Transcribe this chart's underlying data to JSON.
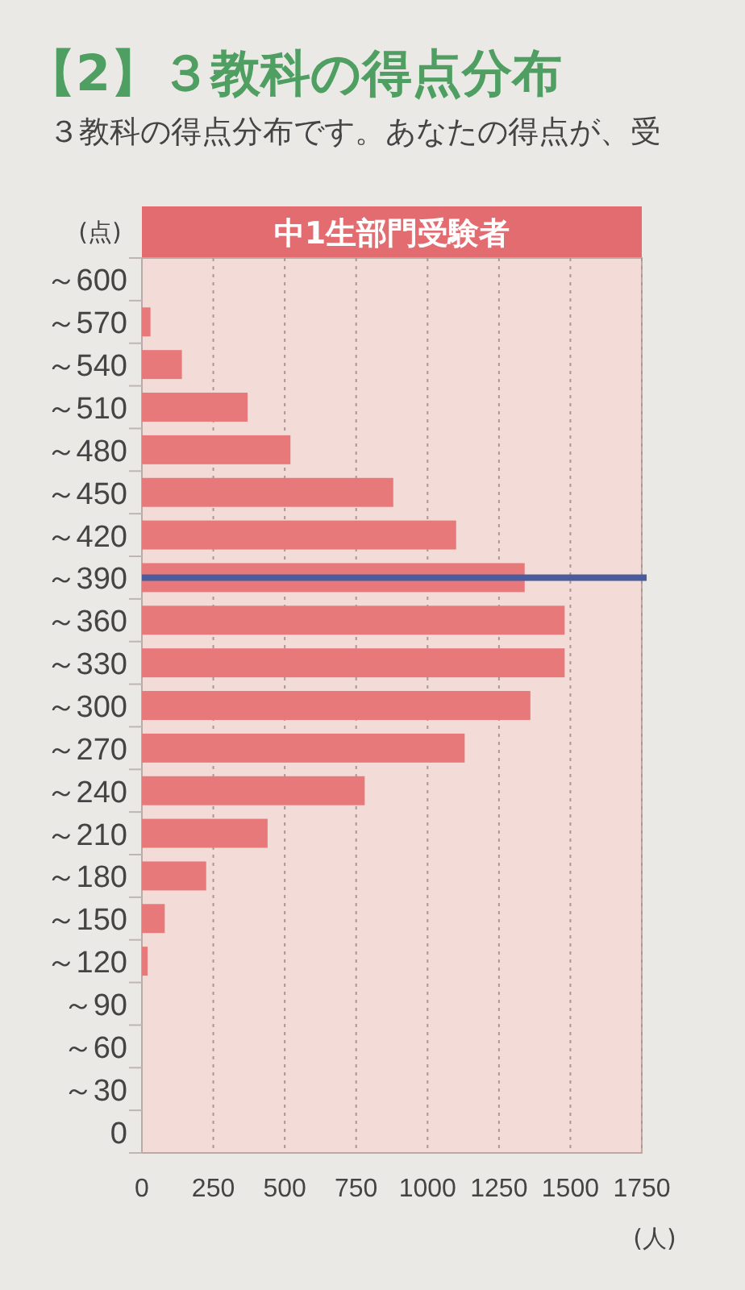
{
  "chart_data": {
    "type": "bar",
    "orientation": "horizontal",
    "title": "【2】３教科の得点分布",
    "subtitle": "３教科の得点分布です。あなたの得点が、受",
    "annotations": [
      "中1生部門受験者"
    ],
    "ylabel": "(点)",
    "xlabel": "(人)",
    "categories": [
      "～600",
      "～570",
      "～540",
      "～510",
      "～480",
      "～450",
      "～420",
      "～390",
      "～360",
      "～330",
      "～300",
      "～270",
      "～240",
      "～210",
      "～180",
      "～150",
      "～120",
      "～90",
      "～60",
      "～30",
      "0"
    ],
    "values": [
      0,
      30,
      140,
      370,
      520,
      880,
      1100,
      1340,
      1480,
      1480,
      1360,
      1130,
      780,
      440,
      225,
      80,
      20,
      0,
      0,
      0,
      0
    ],
    "color": "#e8797b",
    "xlim": [
      0,
      1750
    ],
    "xticks": [
      0,
      250,
      500,
      750,
      1000,
      1250,
      1500,
      1750
    ],
    "grid": "x",
    "ref_lines": [
      {
        "axis": "y",
        "value": "～390",
        "color": "#4a5c9c"
      }
    ]
  }
}
